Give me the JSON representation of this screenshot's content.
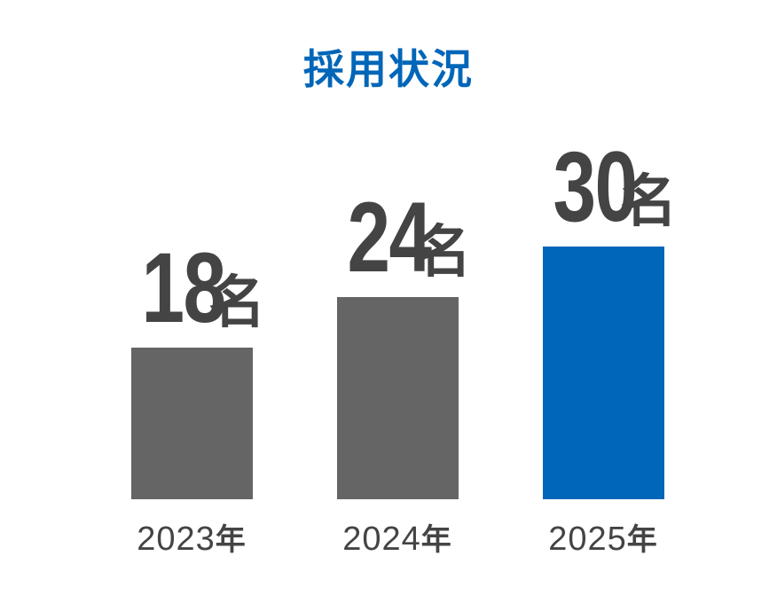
{
  "chart_data": {
    "type": "bar",
    "title": "採用状況",
    "categories": [
      "2023",
      "2024",
      "2025"
    ],
    "category_suffix": "年",
    "values": [
      18,
      24,
      30
    ],
    "value_unit": "名",
    "xlabel": "",
    "ylabel": "",
    "ylim": [
      0,
      30
    ],
    "grid": false,
    "legend": "none"
  },
  "colors": {
    "title": "#0066b8",
    "bar_default": "#666566",
    "bar_highlight": "#0066b8",
    "text": "#444444"
  },
  "highlight_index": 2
}
